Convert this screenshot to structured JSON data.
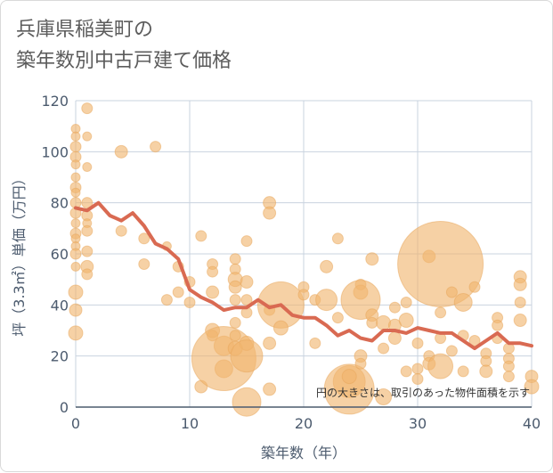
{
  "chart_data": {
    "type": "scatter",
    "title": "兵庫県稲美町の\n築年数別中古戸建て価格",
    "xlabel": "築年数（年）",
    "ylabel": "坪（3.3㎡）単価（万円）",
    "xlim": [
      0,
      40
    ],
    "ylim": [
      0,
      120
    ],
    "xticks": [
      0,
      10,
      20,
      30,
      40
    ],
    "yticks": [
      0,
      20,
      40,
      60,
      80,
      100,
      120
    ],
    "grid": true,
    "annotation": "円の大きさは、取引のあった物件面積を示す",
    "colors": {
      "bubble": "#f0b56e",
      "bubble_edge": "#e8a65a",
      "line": "#d96a52",
      "grid": "#c9d3df",
      "axis": "#4c5b6e"
    },
    "series": [
      {
        "kind": "bubbles",
        "points": [
          {
            "x": 0,
            "y": 109,
            "s": 5
          },
          {
            "x": 0,
            "y": 106,
            "s": 5
          },
          {
            "x": 0,
            "y": 102,
            "s": 6
          },
          {
            "x": 0,
            "y": 98,
            "s": 6
          },
          {
            "x": 0,
            "y": 95,
            "s": 5
          },
          {
            "x": 0,
            "y": 90,
            "s": 5
          },
          {
            "x": 0,
            "y": 86,
            "s": 6
          },
          {
            "x": 0,
            "y": 84,
            "s": 5
          },
          {
            "x": 0,
            "y": 80,
            "s": 6
          },
          {
            "x": 0,
            "y": 76,
            "s": 6
          },
          {
            "x": 0,
            "y": 72,
            "s": 5
          },
          {
            "x": 0,
            "y": 68,
            "s": 6
          },
          {
            "x": 0,
            "y": 66,
            "s": 5
          },
          {
            "x": 0,
            "y": 63,
            "s": 5
          },
          {
            "x": 0,
            "y": 60,
            "s": 6
          },
          {
            "x": 0,
            "y": 55,
            "s": 5
          },
          {
            "x": 0,
            "y": 45,
            "s": 8
          },
          {
            "x": 0,
            "y": 38,
            "s": 7
          },
          {
            "x": 0,
            "y": 29,
            "s": 8
          },
          {
            "x": 1,
            "y": 117,
            "s": 6
          },
          {
            "x": 1,
            "y": 106,
            "s": 5
          },
          {
            "x": 1,
            "y": 94,
            "s": 5
          },
          {
            "x": 1,
            "y": 80,
            "s": 6
          },
          {
            "x": 1,
            "y": 75,
            "s": 6
          },
          {
            "x": 1,
            "y": 72,
            "s": 5
          },
          {
            "x": 1,
            "y": 69,
            "s": 6
          },
          {
            "x": 1,
            "y": 61,
            "s": 6
          },
          {
            "x": 1,
            "y": 55,
            "s": 7
          },
          {
            "x": 1,
            "y": 52,
            "s": 6
          },
          {
            "x": 4,
            "y": 100,
            "s": 7
          },
          {
            "x": 4,
            "y": 69,
            "s": 6
          },
          {
            "x": 6,
            "y": 66,
            "s": 6
          },
          {
            "x": 6,
            "y": 56,
            "s": 6
          },
          {
            "x": 7,
            "y": 102,
            "s": 6
          },
          {
            "x": 8,
            "y": 63,
            "s": 5
          },
          {
            "x": 8,
            "y": 42,
            "s": 6
          },
          {
            "x": 9,
            "y": 55,
            "s": 6
          },
          {
            "x": 9,
            "y": 45,
            "s": 6
          },
          {
            "x": 10,
            "y": 49,
            "s": 6
          },
          {
            "x": 10,
            "y": 41,
            "s": 6
          },
          {
            "x": 11,
            "y": 67,
            "s": 6
          },
          {
            "x": 11,
            "y": 8,
            "s": 7
          },
          {
            "x": 12,
            "y": 56,
            "s": 6
          },
          {
            "x": 12,
            "y": 53,
            "s": 6
          },
          {
            "x": 12,
            "y": 45,
            "s": 7
          },
          {
            "x": 12,
            "y": 30,
            "s": 8
          },
          {
            "x": 12,
            "y": 28,
            "s": 6
          },
          {
            "x": 13,
            "y": 24,
            "s": 11
          },
          {
            "x": 13,
            "y": 15,
            "s": 10
          },
          {
            "x": 13,
            "y": 19,
            "s": 36
          },
          {
            "x": 14,
            "y": 58,
            "s": 6
          },
          {
            "x": 14,
            "y": 54,
            "s": 6
          },
          {
            "x": 14,
            "y": 50,
            "s": 8
          },
          {
            "x": 14,
            "y": 47,
            "s": 7
          },
          {
            "x": 14,
            "y": 42,
            "s": 6
          },
          {
            "x": 14,
            "y": 33,
            "s": 6
          },
          {
            "x": 14,
            "y": 28,
            "s": 6
          },
          {
            "x": 14,
            "y": 23,
            "s": 8
          },
          {
            "x": 15,
            "y": 65,
            "s": 6
          },
          {
            "x": 15,
            "y": 49,
            "s": 7
          },
          {
            "x": 15,
            "y": 42,
            "s": 6
          },
          {
            "x": 15,
            "y": 37,
            "s": 6
          },
          {
            "x": 15,
            "y": 25,
            "s": 8
          },
          {
            "x": 15,
            "y": 20,
            "s": 18
          },
          {
            "x": 15,
            "y": 2,
            "s": 16
          },
          {
            "x": 17,
            "y": 80,
            "s": 7
          },
          {
            "x": 17,
            "y": 76,
            "s": 7
          },
          {
            "x": 17,
            "y": 38,
            "s": 6
          },
          {
            "x": 17,
            "y": 25,
            "s": 7
          },
          {
            "x": 17,
            "y": 7,
            "s": 7
          },
          {
            "x": 18,
            "y": 40,
            "s": 26
          },
          {
            "x": 18,
            "y": 31,
            "s": 8
          },
          {
            "x": 20,
            "y": 47,
            "s": 6
          },
          {
            "x": 20,
            "y": 44,
            "s": 6
          },
          {
            "x": 21,
            "y": 42,
            "s": 6
          },
          {
            "x": 21,
            "y": 25,
            "s": 6
          },
          {
            "x": 22,
            "y": 55,
            "s": 7
          },
          {
            "x": 22,
            "y": 42,
            "s": 12
          },
          {
            "x": 23,
            "y": 66,
            "s": 6
          },
          {
            "x": 23,
            "y": 35,
            "s": 6
          },
          {
            "x": 24,
            "y": 10,
            "s": 18
          },
          {
            "x": 24,
            "y": 7,
            "s": 28
          },
          {
            "x": 24,
            "y": 12,
            "s": 8
          },
          {
            "x": 25,
            "y": 48,
            "s": 6
          },
          {
            "x": 25,
            "y": 45,
            "s": 8
          },
          {
            "x": 25,
            "y": 42,
            "s": 22
          },
          {
            "x": 25,
            "y": 20,
            "s": 7
          },
          {
            "x": 25,
            "y": 17,
            "s": 6
          },
          {
            "x": 26,
            "y": 58,
            "s": 7
          },
          {
            "x": 26,
            "y": 36,
            "s": 7
          },
          {
            "x": 26,
            "y": 33,
            "s": 6
          },
          {
            "x": 27,
            "y": 4,
            "s": 9
          },
          {
            "x": 27,
            "y": 23,
            "s": 6
          },
          {
            "x": 27,
            "y": 33,
            "s": 8
          },
          {
            "x": 28,
            "y": 39,
            "s": 6
          },
          {
            "x": 28,
            "y": 32,
            "s": 7
          },
          {
            "x": 28,
            "y": 27,
            "s": 7
          },
          {
            "x": 29,
            "y": 41,
            "s": 6
          },
          {
            "x": 29,
            "y": 34,
            "s": 8
          },
          {
            "x": 29,
            "y": 14,
            "s": 6
          },
          {
            "x": 30,
            "y": 25,
            "s": 6
          },
          {
            "x": 30,
            "y": 15,
            "s": 6
          },
          {
            "x": 30,
            "y": 11,
            "s": 6
          },
          {
            "x": 31,
            "y": 59,
            "s": 7
          },
          {
            "x": 31,
            "y": 20,
            "s": 6
          },
          {
            "x": 31,
            "y": 17,
            "s": 7
          },
          {
            "x": 32,
            "y": 56,
            "s": 48
          },
          {
            "x": 32,
            "y": 37,
            "s": 6
          },
          {
            "x": 32,
            "y": 27,
            "s": 6
          },
          {
            "x": 32,
            "y": 16,
            "s": 14
          },
          {
            "x": 33,
            "y": 45,
            "s": 6
          },
          {
            "x": 33,
            "y": 22,
            "s": 6
          },
          {
            "x": 34,
            "y": 41,
            "s": 10
          },
          {
            "x": 34,
            "y": 28,
            "s": 6
          },
          {
            "x": 34,
            "y": 14,
            "s": 6
          },
          {
            "x": 35,
            "y": 47,
            "s": 6
          },
          {
            "x": 35,
            "y": 26,
            "s": 6
          },
          {
            "x": 36,
            "y": 21,
            "s": 6
          },
          {
            "x": 36,
            "y": 18,
            "s": 6
          },
          {
            "x": 36,
            "y": 14,
            "s": 7
          },
          {
            "x": 37,
            "y": 35,
            "s": 6
          },
          {
            "x": 37,
            "y": 32,
            "s": 6
          },
          {
            "x": 37,
            "y": 27,
            "s": 6
          },
          {
            "x": 38,
            "y": 23,
            "s": 6
          },
          {
            "x": 38,
            "y": 19,
            "s": 6
          },
          {
            "x": 38,
            "y": 16,
            "s": 6
          },
          {
            "x": 38,
            "y": 12,
            "s": 6
          },
          {
            "x": 39,
            "y": 51,
            "s": 7
          },
          {
            "x": 39,
            "y": 48,
            "s": 7
          },
          {
            "x": 39,
            "y": 41,
            "s": 6
          },
          {
            "x": 39,
            "y": 34,
            "s": 7
          },
          {
            "x": 40,
            "y": 12,
            "s": 7
          },
          {
            "x": 40,
            "y": 8,
            "s": 8
          }
        ]
      },
      {
        "kind": "line",
        "x": [
          0,
          1,
          2,
          3,
          4,
          5,
          6,
          7,
          8,
          9,
          10,
          11,
          12,
          13,
          14,
          15,
          16,
          17,
          18,
          19,
          20,
          21,
          22,
          23,
          24,
          25,
          26,
          27,
          28,
          29,
          30,
          31,
          32,
          33,
          34,
          35,
          36,
          37,
          38,
          39,
          40
        ],
        "y": [
          78,
          77,
          80,
          75,
          73,
          76,
          71,
          64,
          62,
          58,
          46,
          43,
          41,
          38,
          39,
          39,
          42,
          39,
          40,
          36,
          35,
          35,
          32,
          28,
          30,
          27,
          26,
          30,
          30,
          29,
          31,
          30,
          29,
          29,
          26,
          23,
          26,
          29,
          25,
          25,
          24
        ]
      }
    ]
  }
}
